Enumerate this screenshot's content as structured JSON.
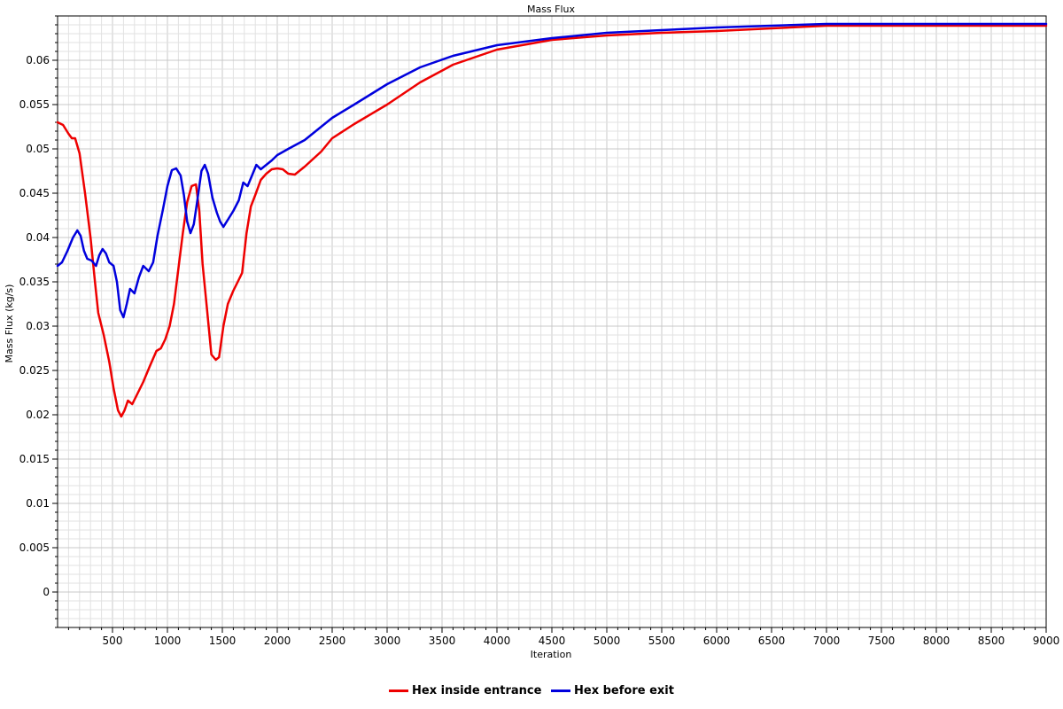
{
  "chart_data": {
    "type": "line",
    "title": "Mass Flux",
    "xlabel": "Iteration",
    "ylabel": "Mass Flux (kg/s)",
    "xlim": [
      0,
      9000
    ],
    "ylim": [
      -0.004,
      0.065
    ],
    "x_ticks": [
      500,
      1000,
      1500,
      2000,
      2500,
      3000,
      3500,
      4000,
      4500,
      5000,
      5500,
      6000,
      6500,
      7000,
      7500,
      8000,
      8500,
      9000
    ],
    "y_ticks": [
      0,
      0.005,
      0.01,
      0.015,
      0.02,
      0.025,
      0.03,
      0.035,
      0.04,
      0.045,
      0.05,
      0.055,
      0.06
    ],
    "grid": true,
    "legend_position": "bottom-center",
    "series": [
      {
        "name": "Hex inside entrance",
        "color": "#ee0000",
        "points": [
          [
            0,
            0.053
          ],
          [
            50,
            0.0527
          ],
          [
            100,
            0.0517
          ],
          [
            130,
            0.0512
          ],
          [
            160,
            0.0512
          ],
          [
            200,
            0.0495
          ],
          [
            250,
            0.045
          ],
          [
            300,
            0.04
          ],
          [
            340,
            0.035
          ],
          [
            370,
            0.0315
          ],
          [
            420,
            0.029
          ],
          [
            470,
            0.026
          ],
          [
            510,
            0.023
          ],
          [
            550,
            0.0205
          ],
          [
            580,
            0.0198
          ],
          [
            610,
            0.0205
          ],
          [
            640,
            0.0216
          ],
          [
            680,
            0.0212
          ],
          [
            720,
            0.0222
          ],
          [
            780,
            0.0237
          ],
          [
            840,
            0.0255
          ],
          [
            900,
            0.0272
          ],
          [
            940,
            0.0275
          ],
          [
            980,
            0.0285
          ],
          [
            1020,
            0.03
          ],
          [
            1060,
            0.0325
          ],
          [
            1100,
            0.0365
          ],
          [
            1140,
            0.0405
          ],
          [
            1180,
            0.044
          ],
          [
            1220,
            0.0458
          ],
          [
            1260,
            0.046
          ],
          [
            1290,
            0.043
          ],
          [
            1320,
            0.037
          ],
          [
            1360,
            0.032
          ],
          [
            1400,
            0.0268
          ],
          [
            1440,
            0.0262
          ],
          [
            1470,
            0.0265
          ],
          [
            1510,
            0.03
          ],
          [
            1550,
            0.0325
          ],
          [
            1600,
            0.034
          ],
          [
            1640,
            0.035
          ],
          [
            1680,
            0.036
          ],
          [
            1720,
            0.0405
          ],
          [
            1760,
            0.0435
          ],
          [
            1800,
            0.0448
          ],
          [
            1850,
            0.0465
          ],
          [
            1900,
            0.0472
          ],
          [
            1950,
            0.0477
          ],
          [
            2000,
            0.0478
          ],
          [
            2050,
            0.0477
          ],
          [
            2100,
            0.0472
          ],
          [
            2160,
            0.0471
          ],
          [
            2250,
            0.048
          ],
          [
            2400,
            0.0497
          ],
          [
            2500,
            0.0512
          ],
          [
            2700,
            0.0528
          ],
          [
            3000,
            0.055
          ],
          [
            3300,
            0.0575
          ],
          [
            3600,
            0.0595
          ],
          [
            4000,
            0.0612
          ],
          [
            4500,
            0.0623
          ],
          [
            5000,
            0.0628
          ],
          [
            5500,
            0.0631
          ],
          [
            6000,
            0.0633
          ],
          [
            6500,
            0.0636
          ],
          [
            7000,
            0.0639
          ],
          [
            7500,
            0.0639
          ],
          [
            8000,
            0.0639
          ],
          [
            9000,
            0.0639
          ]
        ]
      },
      {
        "name": "Hex before exit",
        "color": "#0000dd",
        "points": [
          [
            0,
            0.0368
          ],
          [
            40,
            0.0372
          ],
          [
            90,
            0.0385
          ],
          [
            140,
            0.04
          ],
          [
            180,
            0.0408
          ],
          [
            210,
            0.0402
          ],
          [
            240,
            0.0385
          ],
          [
            270,
            0.0376
          ],
          [
            310,
            0.0374
          ],
          [
            350,
            0.0368
          ],
          [
            380,
            0.038
          ],
          [
            410,
            0.0387
          ],
          [
            440,
            0.0382
          ],
          [
            470,
            0.0372
          ],
          [
            510,
            0.0368
          ],
          [
            540,
            0.035
          ],
          [
            570,
            0.0318
          ],
          [
            600,
            0.031
          ],
          [
            630,
            0.0325
          ],
          [
            660,
            0.0342
          ],
          [
            700,
            0.0337
          ],
          [
            740,
            0.0355
          ],
          [
            780,
            0.0368
          ],
          [
            830,
            0.0362
          ],
          [
            870,
            0.0372
          ],
          [
            910,
            0.0402
          ],
          [
            960,
            0.0432
          ],
          [
            1000,
            0.0458
          ],
          [
            1040,
            0.0476
          ],
          [
            1080,
            0.0478
          ],
          [
            1120,
            0.047
          ],
          [
            1150,
            0.0448
          ],
          [
            1180,
            0.0418
          ],
          [
            1210,
            0.0405
          ],
          [
            1240,
            0.0415
          ],
          [
            1270,
            0.044
          ],
          [
            1310,
            0.0475
          ],
          [
            1340,
            0.0482
          ],
          [
            1370,
            0.0472
          ],
          [
            1410,
            0.0445
          ],
          [
            1450,
            0.0428
          ],
          [
            1480,
            0.0418
          ],
          [
            1510,
            0.0412
          ],
          [
            1550,
            0.042
          ],
          [
            1600,
            0.043
          ],
          [
            1650,
            0.0442
          ],
          [
            1690,
            0.0462
          ],
          [
            1730,
            0.0458
          ],
          [
            1770,
            0.047
          ],
          [
            1810,
            0.0482
          ],
          [
            1850,
            0.0477
          ],
          [
            1900,
            0.0482
          ],
          [
            1950,
            0.0487
          ],
          [
            2000,
            0.0493
          ],
          [
            2100,
            0.05
          ],
          [
            2250,
            0.051
          ],
          [
            2400,
            0.0525
          ],
          [
            2500,
            0.0535
          ],
          [
            2700,
            0.055
          ],
          [
            3000,
            0.0573
          ],
          [
            3300,
            0.0592
          ],
          [
            3600,
            0.0605
          ],
          [
            4000,
            0.0617
          ],
          [
            4500,
            0.0625
          ],
          [
            5000,
            0.0631
          ],
          [
            5500,
            0.0634
          ],
          [
            6000,
            0.0637
          ],
          [
            6500,
            0.0639
          ],
          [
            7000,
            0.0641
          ],
          [
            7500,
            0.0641
          ],
          [
            8000,
            0.0641
          ],
          [
            9000,
            0.0641
          ]
        ]
      }
    ]
  }
}
